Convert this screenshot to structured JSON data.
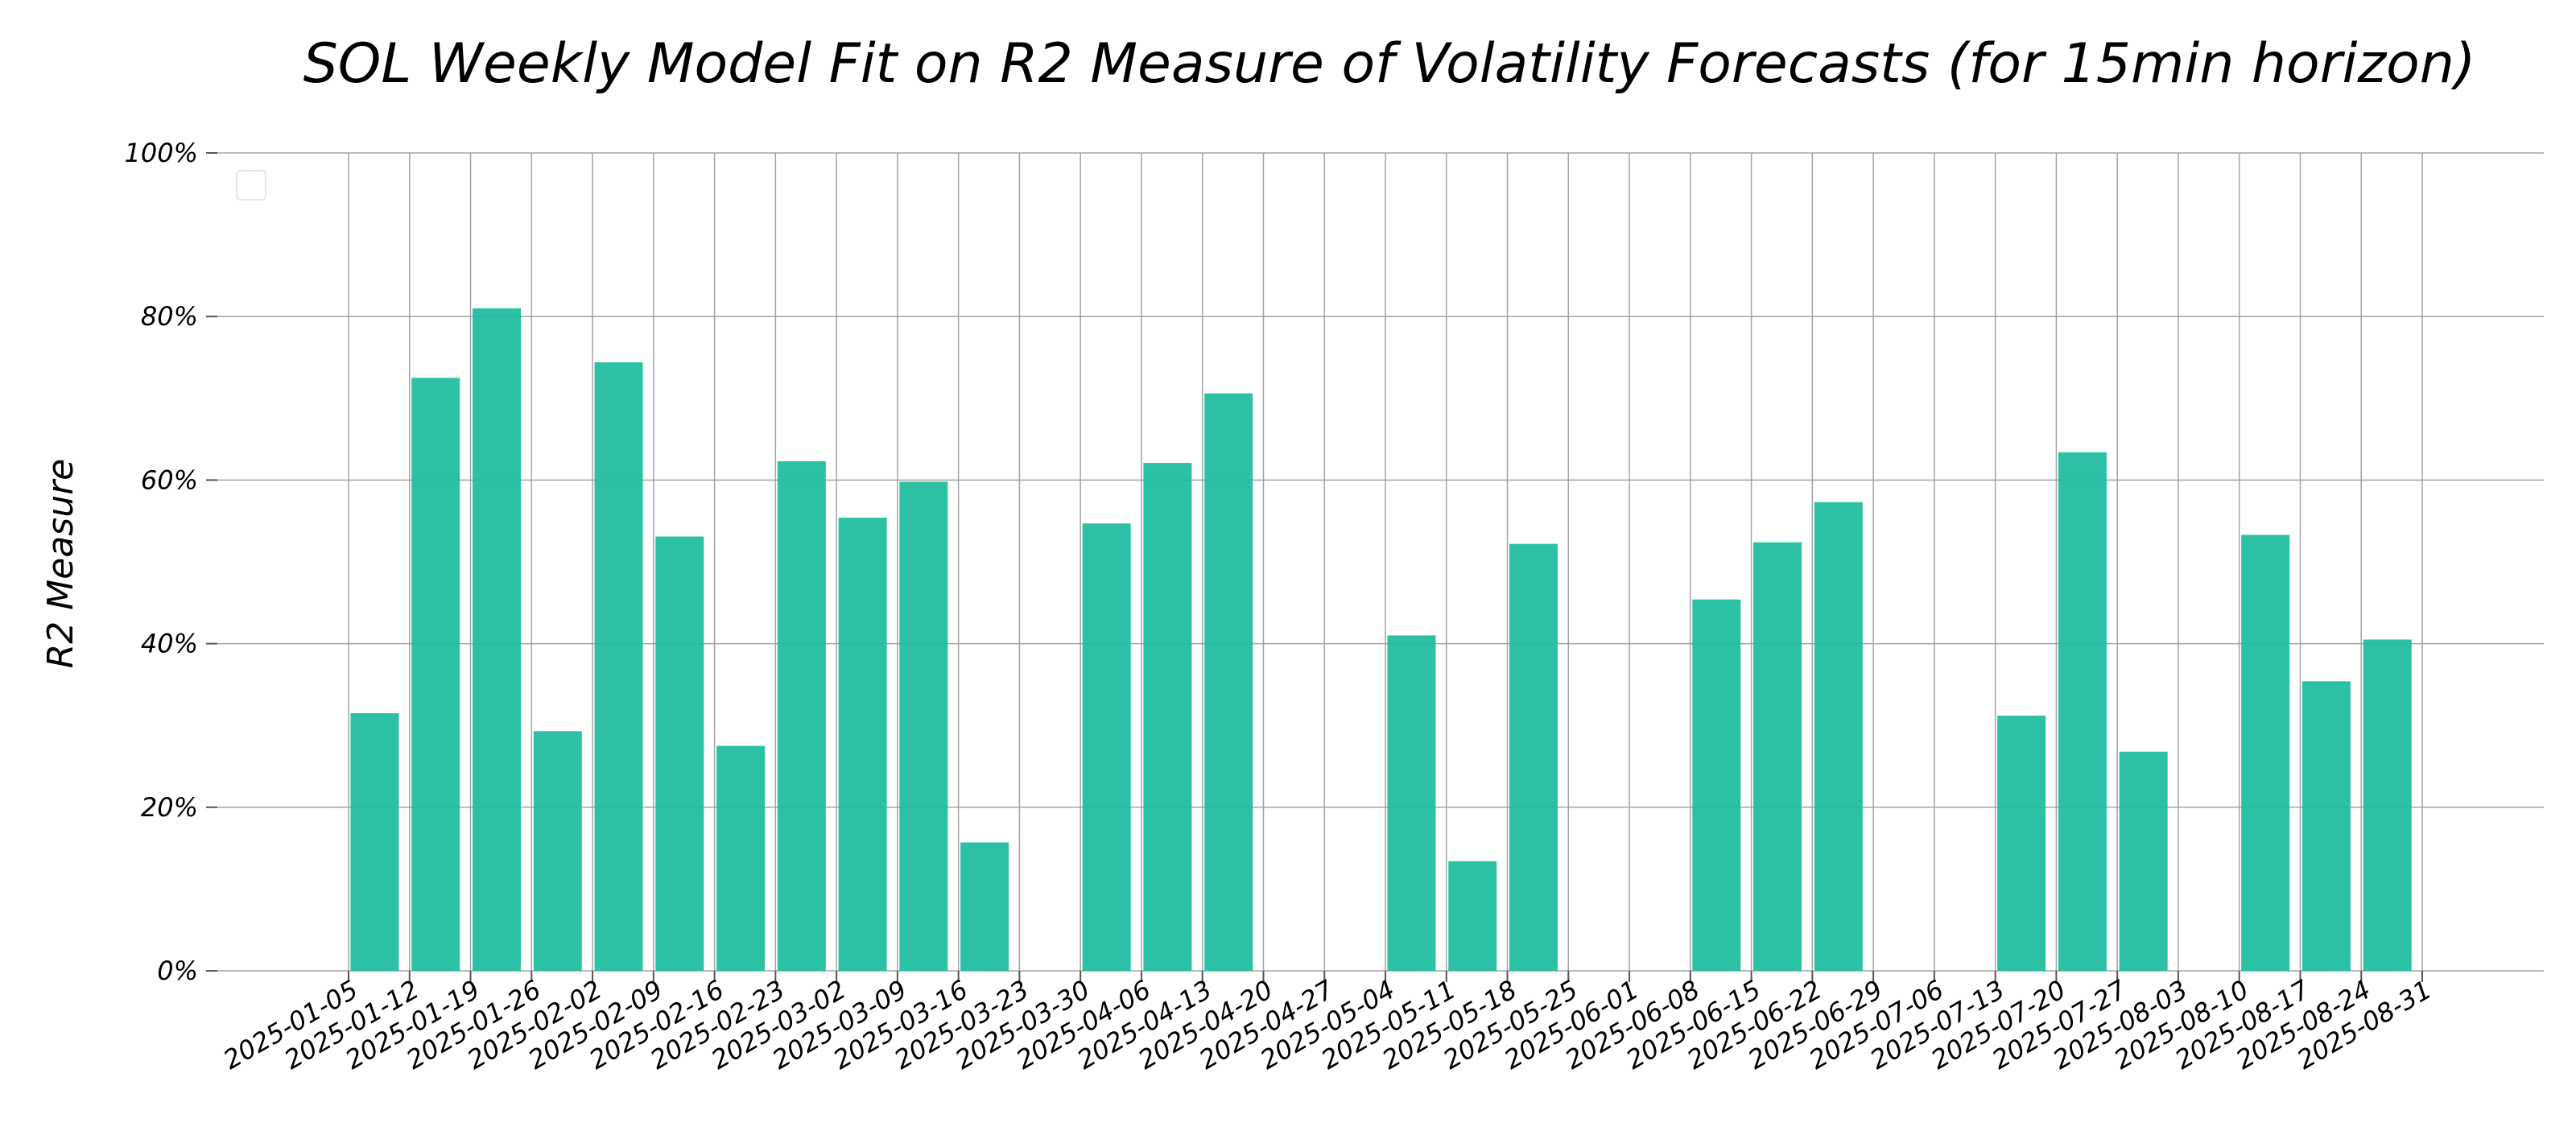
{
  "chart_data": {
    "type": "bar",
    "title": "SOL Weekly Model Fit on R2 Measure of Volatility Forecasts (for 15min horizon)",
    "xlabel": "",
    "ylabel": "R2 Measure",
    "ylim": [
      0,
      1
    ],
    "yticks": [
      0,
      0.2,
      0.4,
      0.6,
      0.8,
      1.0
    ],
    "ytick_labels": [
      "0%",
      "20%",
      "40%",
      "60%",
      "80%",
      "100%"
    ],
    "grid": true,
    "bar_color": "#1ABC9C",
    "categories": [
      "2025-01-05",
      "2025-01-12",
      "2025-01-19",
      "2025-01-26",
      "2025-02-02",
      "2025-02-09",
      "2025-02-16",
      "2025-02-23",
      "2025-03-02",
      "2025-03-09",
      "2025-03-16",
      "2025-03-23",
      "2025-03-30",
      "2025-04-06",
      "2025-04-13",
      "2025-04-20",
      "2025-04-27",
      "2025-05-04",
      "2025-05-11",
      "2025-05-18",
      "2025-05-25",
      "2025-06-01",
      "2025-06-08",
      "2025-06-15",
      "2025-06-22",
      "2025-06-29",
      "2025-07-06",
      "2025-07-13",
      "2025-07-20",
      "2025-07-27",
      "2025-08-03",
      "2025-08-10",
      "2025-08-17",
      "2025-08-24",
      "2025-08-31"
    ],
    "bars": [
      {
        "x": "2025-01-08",
        "value": 0.315
      },
      {
        "x": "2025-01-15",
        "value": 0.725
      },
      {
        "x": "2025-01-22",
        "value": 0.81
      },
      {
        "x": "2025-01-29",
        "value": 0.293
      },
      {
        "x": "2025-02-05",
        "value": 0.744
      },
      {
        "x": "2025-02-12",
        "value": 0.531
      },
      {
        "x": "2025-02-19",
        "value": 0.275
      },
      {
        "x": "2025-02-26",
        "value": 0.623
      },
      {
        "x": "2025-03-05",
        "value": 0.554
      },
      {
        "x": "2025-03-12",
        "value": 0.598
      },
      {
        "x": "2025-03-19",
        "value": 0.157
      },
      {
        "x": "2025-04-02",
        "value": 0.547
      },
      {
        "x": "2025-04-09",
        "value": 0.621
      },
      {
        "x": "2025-04-16",
        "value": 0.706
      },
      {
        "x": "2025-05-07",
        "value": 0.41
      },
      {
        "x": "2025-05-14",
        "value": 0.134
      },
      {
        "x": "2025-05-21",
        "value": 0.522
      },
      {
        "x": "2025-06-11",
        "value": 0.454
      },
      {
        "x": "2025-06-18",
        "value": 0.524
      },
      {
        "x": "2025-06-25",
        "value": 0.573
      },
      {
        "x": "2025-07-16",
        "value": 0.312
      },
      {
        "x": "2025-07-23",
        "value": 0.634
      },
      {
        "x": "2025-07-30",
        "value": 0.268
      },
      {
        "x": "2025-08-13",
        "value": 0.533
      },
      {
        "x": "2025-08-20",
        "value": 0.354
      },
      {
        "x": "2025-08-27",
        "value": 0.405
      }
    ]
  }
}
